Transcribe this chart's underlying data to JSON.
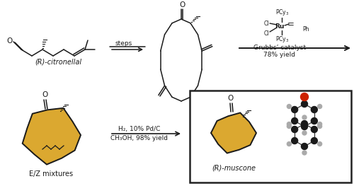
{
  "bg_color": "#ffffff",
  "citronellal_label": "(R)-citronellal",
  "steps_text": "steps",
  "grubbs_line1": "Grubbs’ catalyst",
  "grubbs_line2": "78% yield",
  "h2_line1": "H₂, 10% Pd/C",
  "h2_line2": "CH₃OH, 98% yield",
  "ez_label": "E/Z mixtures",
  "muscone_label": "(R)-muscone",
  "bond_color": "#1a1a1a",
  "text_color": "#1a1a1a",
  "ring_fill": "#dba830",
  "font_size": 6.5,
  "font_size_label": 7.0,
  "box_edge_color": "#222222",
  "c_ball_color": "#1a1a1a",
  "h_ball_color": "#aaaaaa",
  "o_ball_color": "#cc2200"
}
